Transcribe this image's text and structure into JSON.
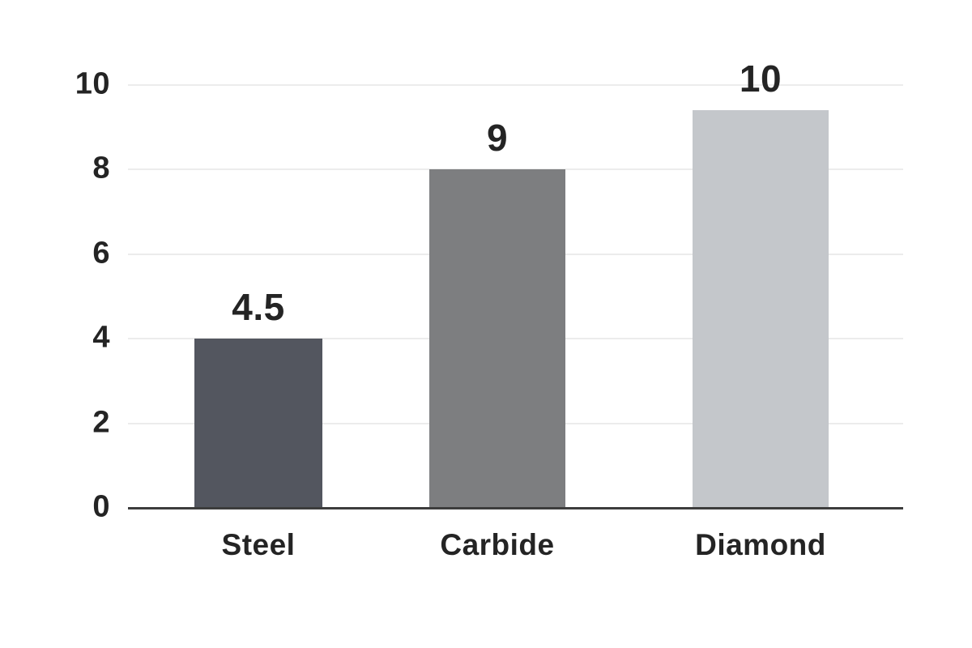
{
  "chart_data": {
    "type": "bar",
    "title": "",
    "xlabel": "",
    "ylabel": "",
    "categories": [
      "Steel",
      "Carbide",
      "Diamond"
    ],
    "values": [
      4.5,
      9,
      10
    ],
    "value_labels": [
      "4.5",
      "9",
      "10"
    ],
    "bar_display_heights": [
      4.0,
      8.0,
      9.4
    ],
    "bar_colors": [
      "#53565f",
      "#7d7e80",
      "#c4c7cb"
    ],
    "ylim": [
      0,
      10
    ],
    "yticks": [
      0,
      2,
      4,
      6,
      8,
      10
    ],
    "grid": "horizontal",
    "legend": "none",
    "colors": {
      "text": "#242424",
      "gridline": "#ececec",
      "axis_line": "#3d3d3d",
      "background": "#ffffff"
    }
  }
}
